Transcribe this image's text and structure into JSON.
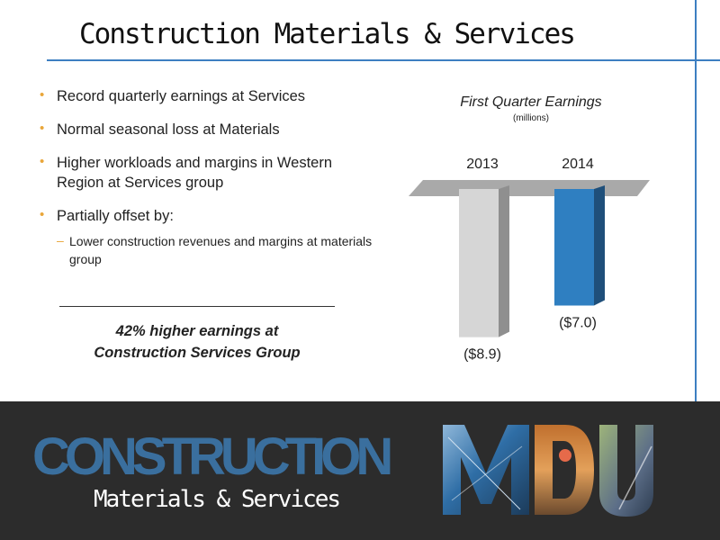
{
  "slide": {
    "title": "Construction Materials & Services",
    "bullets": [
      {
        "text": "Record quarterly earnings at Services"
      },
      {
        "text": "Normal seasonal loss at Materials"
      },
      {
        "text": "Higher workloads and margins in Western Region at Services group"
      },
      {
        "text": "Partially offset by:"
      }
    ],
    "sub_bullets": [
      {
        "text": "Lower construction revenues and margins at materials group"
      }
    ],
    "highlight_line1": "42% higher earnings at",
    "highlight_line2": "Construction Services Group"
  },
  "footer": {
    "brand_word": "CONSTRUCTION",
    "brand_sub": "Materials & Services",
    "logo_text": "MDU"
  },
  "colors": {
    "accent": "#3d7fc1",
    "bullet": "#e9a63a",
    "bar_2013": "#d6d6d6",
    "bar_2014": "#2f7fc1",
    "footer_bg": "#2c2c2c"
  },
  "chart_data": {
    "type": "bar",
    "title": "First Quarter Earnings",
    "subtitle": "(millions)",
    "categories": [
      "2013",
      "2014"
    ],
    "values": [
      -8.9,
      -7.0
    ],
    "value_labels": [
      "($8.9)",
      "($7.0)"
    ],
    "ylim": [
      -10,
      0
    ],
    "grid": false,
    "legend": "none"
  }
}
